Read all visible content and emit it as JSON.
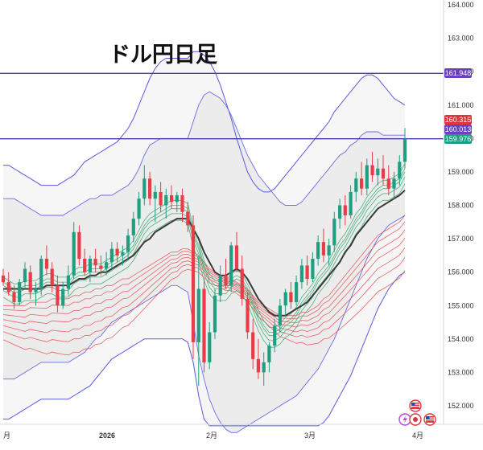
{
  "chart_data": {
    "type": "candlestick",
    "title": "ドル円日足",
    "x_ticks": [
      "月",
      "2026",
      "2月",
      "3月",
      "4月"
    ],
    "y_ticks": [
      "152.000",
      "153.000",
      "154.000",
      "155.000",
      "156.000",
      "157.000",
      "158.000",
      "159.000",
      "160.000",
      "161.000",
      "162.000",
      "163.000",
      "164.000"
    ],
    "y_range": [
      151.4,
      164.0
    ],
    "grid": false,
    "horizontal_lines": [
      161.948,
      159.99
    ],
    "price_badges": [
      {
        "label": "161.948",
        "value": 161.948,
        "color": "#6a3fc0"
      },
      {
        "label": "160.315",
        "value": 160.315,
        "color": "#e0343c"
      },
      {
        "label": "160.013",
        "value": 160.013,
        "color": "#6a3fc0"
      },
      {
        "label": "159.976",
        "value": 159.976,
        "color": "#1f9e82"
      }
    ],
    "candles": [
      [
        155.9,
        156.1,
        155.6,
        155.7
      ],
      [
        155.7,
        156.0,
        155.3,
        155.4
      ],
      [
        155.4,
        155.6,
        154.9,
        155.1
      ],
      [
        155.1,
        155.8,
        155.0,
        155.7
      ],
      [
        155.7,
        156.3,
        155.5,
        156.1
      ],
      [
        156.0,
        156.2,
        155.2,
        155.4
      ],
      [
        155.4,
        155.7,
        155.0,
        155.5
      ],
      [
        155.5,
        156.5,
        155.3,
        156.4
      ],
      [
        156.4,
        156.8,
        155.9,
        156.1
      ],
      [
        156.1,
        156.3,
        155.4,
        155.6
      ],
      [
        155.6,
        155.9,
        154.8,
        155.0
      ],
      [
        155.0,
        155.7,
        154.9,
        155.5
      ],
      [
        155.5,
        156.2,
        155.3,
        155.9
      ],
      [
        155.9,
        157.5,
        155.8,
        157.2
      ],
      [
        157.2,
        157.4,
        156.2,
        156.4
      ],
      [
        156.4,
        156.7,
        155.9,
        156.0
      ],
      [
        156.0,
        156.5,
        155.7,
        156.4
      ],
      [
        156.4,
        156.7,
        156.0,
        156.2
      ],
      [
        156.2,
        156.5,
        155.9,
        156.1
      ],
      [
        156.1,
        156.6,
        155.9,
        156.3
      ],
      [
        156.3,
        156.9,
        156.1,
        156.7
      ],
      [
        156.7,
        156.9,
        156.3,
        156.5
      ],
      [
        156.5,
        156.8,
        156.2,
        156.6
      ],
      [
        156.6,
        157.3,
        156.4,
        157.1
      ],
      [
        157.1,
        157.8,
        156.9,
        157.6
      ],
      [
        157.6,
        158.4,
        157.4,
        158.2
      ],
      [
        158.2,
        159.2,
        158.0,
        158.8
      ],
      [
        158.8,
        159.0,
        158.0,
        158.2
      ],
      [
        158.2,
        158.6,
        157.5,
        158.4
      ],
      [
        158.4,
        158.7,
        157.8,
        158.0
      ],
      [
        158.0,
        158.5,
        157.6,
        158.3
      ],
      [
        158.3,
        158.6,
        157.9,
        158.1
      ],
      [
        158.1,
        158.4,
        157.8,
        158.3
      ],
      [
        158.3,
        158.5,
        157.5,
        157.8
      ],
      [
        157.8,
        158.1,
        157.2,
        157.4
      ],
      [
        157.4,
        157.7,
        153.4,
        153.9
      ],
      [
        153.9,
        156.5,
        152.6,
        155.5
      ],
      [
        155.5,
        155.8,
        153.0,
        153.3
      ],
      [
        153.3,
        154.5,
        153.1,
        154.2
      ],
      [
        154.2,
        155.5,
        154.0,
        155.3
      ],
      [
        155.3,
        156.2,
        155.1,
        155.9
      ],
      [
        155.9,
        156.4,
        155.5,
        155.6
      ],
      [
        155.6,
        156.9,
        155.4,
        156.8
      ],
      [
        156.8,
        157.2,
        156.0,
        156.1
      ],
      [
        156.1,
        156.5,
        155.0,
        155.2
      ],
      [
        155.2,
        155.4,
        154.0,
        154.2
      ],
      [
        154.2,
        154.6,
        153.1,
        153.4
      ],
      [
        153.4,
        154.0,
        152.8,
        153.0
      ],
      [
        153.0,
        153.6,
        152.6,
        153.3
      ],
      [
        153.3,
        153.9,
        153.0,
        153.8
      ],
      [
        153.8,
        154.6,
        153.6,
        154.4
      ],
      [
        154.4,
        155.2,
        154.2,
        155.0
      ],
      [
        155.0,
        155.5,
        154.7,
        155.4
      ],
      [
        155.4,
        155.7,
        154.9,
        155.1
      ],
      [
        155.1,
        155.9,
        155.0,
        155.7
      ],
      [
        155.7,
        156.4,
        155.5,
        156.2
      ],
      [
        156.2,
        156.5,
        155.6,
        155.8
      ],
      [
        155.8,
        156.6,
        155.7,
        156.4
      ],
      [
        156.4,
        157.1,
        156.2,
        156.9
      ],
      [
        156.9,
        157.3,
        156.3,
        156.5
      ],
      [
        156.5,
        157.0,
        156.2,
        156.8
      ],
      [
        156.8,
        157.8,
        156.6,
        157.6
      ],
      [
        157.6,
        158.2,
        157.3,
        158.0
      ],
      [
        158.0,
        158.3,
        157.4,
        157.7
      ],
      [
        157.7,
        158.6,
        157.6,
        158.4
      ],
      [
        158.4,
        159.0,
        158.1,
        158.8
      ],
      [
        158.8,
        159.3,
        158.3,
        158.5
      ],
      [
        158.5,
        159.4,
        158.3,
        159.2
      ],
      [
        159.2,
        159.6,
        158.7,
        158.9
      ],
      [
        158.9,
        159.4,
        158.6,
        159.1
      ],
      [
        159.1,
        159.5,
        158.6,
        158.8
      ],
      [
        158.8,
        159.2,
        158.3,
        158.5
      ],
      [
        158.5,
        159.0,
        158.2,
        158.8
      ],
      [
        158.8,
        159.5,
        158.6,
        159.3
      ],
      [
        159.3,
        160.315,
        159.1,
        159.976
      ]
    ],
    "overlays": {
      "ema_short_green": [
        155.7,
        155.6,
        155.5,
        155.5,
        155.6,
        155.6,
        155.6,
        155.7,
        155.8,
        155.8,
        155.7,
        155.7,
        155.7,
        155.9,
        156.0,
        156.0,
        156.1,
        156.1,
        156.1,
        156.2,
        156.3,
        156.4,
        156.5,
        156.6,
        156.8,
        157.1,
        157.4,
        157.6,
        157.7,
        157.8,
        157.9,
        158.0,
        158.0,
        158.0,
        157.9,
        157.2,
        156.8,
        156.2,
        155.8,
        155.6,
        155.6,
        155.6,
        155.8,
        155.9,
        155.8,
        155.5,
        155.1,
        154.7,
        154.4,
        154.2,
        154.2,
        154.3,
        154.5,
        154.6,
        154.8,
        155.1,
        155.3,
        155.5,
        155.8,
        156.0,
        156.2,
        156.5,
        156.8,
        157.0,
        157.3,
        157.6,
        157.8,
        158.1,
        158.3,
        158.5,
        158.6,
        158.6,
        158.7,
        158.8,
        159.1
      ],
      "ma_mid_dark": [
        155.5,
        155.5,
        155.5,
        155.5,
        155.5,
        155.5,
        155.5,
        155.5,
        155.6,
        155.6,
        155.6,
        155.6,
        155.6,
        155.7,
        155.8,
        155.8,
        155.9,
        155.9,
        156.0,
        156.0,
        156.1,
        156.2,
        156.3,
        156.4,
        156.5,
        156.7,
        156.9,
        157.0,
        157.2,
        157.3,
        157.4,
        157.5,
        157.6,
        157.6,
        157.6,
        157.3,
        157.0,
        156.6,
        156.3,
        156.0,
        155.9,
        155.9,
        156.0,
        156.1,
        156.0,
        155.8,
        155.5,
        155.2,
        155.0,
        154.8,
        154.7,
        154.7,
        154.7,
        154.8,
        154.9,
        155.0,
        155.1,
        155.3,
        155.5,
        155.7,
        155.9,
        156.1,
        156.3,
        156.6,
        156.8,
        157.1,
        157.3,
        157.5,
        157.7,
        157.9,
        158.0,
        158.1,
        158.2,
        158.3,
        158.45
      ],
      "ma_long_red": [
        155.0,
        155.0,
        155.0,
        155.0,
        155.0,
        155.1,
        155.1,
        155.1,
        155.1,
        155.2,
        155.2,
        155.2,
        155.2,
        155.3,
        155.3,
        155.4,
        155.4,
        155.5,
        155.5,
        155.6,
        155.6,
        155.7,
        155.8,
        155.8,
        155.9,
        156.0,
        156.1,
        156.2,
        156.3,
        156.4,
        156.5,
        156.6,
        156.6,
        156.7,
        156.7,
        156.6,
        156.5,
        156.3,
        156.1,
        156.0,
        155.9,
        155.8,
        155.8,
        155.7,
        155.6,
        155.5,
        155.3,
        155.1,
        155.0,
        154.9,
        154.8,
        154.7,
        154.7,
        154.7,
        154.7,
        154.8,
        154.8,
        154.9,
        155.0,
        155.2,
        155.3,
        155.5,
        155.7,
        155.9,
        156.1,
        156.3,
        156.5,
        156.7,
        156.9,
        157.1,
        157.2,
        157.3,
        157.4,
        157.5,
        157.7
      ],
      "bb_upper": [
        158.2,
        158.2,
        158.2,
        158.1,
        158.0,
        157.9,
        157.8,
        157.7,
        157.7,
        157.7,
        157.7,
        157.7,
        157.8,
        157.9,
        158.0,
        158.1,
        158.2,
        158.2,
        158.3,
        158.3,
        158.3,
        158.4,
        158.5,
        158.6,
        158.8,
        159.1,
        159.5,
        159.8,
        159.9,
        160.0,
        160.0,
        160.0,
        160.0,
        160.0,
        160.0,
        160.5,
        161.0,
        161.3,
        161.4,
        161.3,
        161.2,
        161.0,
        160.7,
        160.3,
        159.9,
        159.5,
        159.2,
        158.9,
        158.7,
        158.5,
        158.3,
        158.1,
        158.0,
        158.0,
        158.0,
        158.1,
        158.3,
        158.5,
        158.7,
        158.9,
        159.1,
        159.3,
        159.5,
        159.6,
        159.8,
        159.9,
        160.1,
        160.2,
        160.2,
        160.2,
        160.1,
        160.1,
        160.1,
        160.1,
        160.1
      ],
      "bb_lower": [
        152.8,
        152.8,
        152.8,
        152.9,
        153.0,
        153.1,
        153.2,
        153.3,
        153.3,
        153.3,
        153.3,
        153.3,
        153.3,
        153.4,
        153.5,
        153.6,
        153.8,
        154.0,
        154.1,
        154.3,
        154.5,
        154.6,
        154.7,
        154.8,
        154.9,
        155.0,
        155.1,
        155.2,
        155.3,
        155.4,
        155.5,
        155.6,
        155.6,
        155.5,
        155.4,
        154.5,
        153.5,
        152.8,
        152.2,
        151.8,
        151.5,
        151.3,
        151.2,
        151.2,
        151.3,
        151.4,
        151.5,
        151.6,
        151.7,
        151.8,
        151.9,
        152.0,
        152.1,
        152.2,
        152.3,
        152.5,
        152.7,
        152.9,
        153.1,
        153.4,
        153.7,
        154.0,
        154.4,
        154.8,
        155.2,
        155.6,
        156.0,
        156.4,
        156.7,
        157.0,
        157.2,
        157.4,
        157.5,
        157.6,
        157.7
      ],
      "bb_outer_upper": [
        159.2,
        159.2,
        159.1,
        159.0,
        158.9,
        158.8,
        158.7,
        158.6,
        158.6,
        158.6,
        158.6,
        158.7,
        158.8,
        158.9,
        159.1,
        159.3,
        159.4,
        159.5,
        159.6,
        159.7,
        159.8,
        159.9,
        160.1,
        160.3,
        160.6,
        161.0,
        161.4,
        161.8,
        162.1,
        162.3,
        162.4,
        162.4,
        162.4,
        162.4,
        162.4,
        162.6,
        162.6,
        162.5,
        162.3,
        162.0,
        161.6,
        161.1,
        160.6,
        160.0,
        159.5,
        159.0,
        158.7,
        158.5,
        158.4,
        158.4,
        158.5,
        158.7,
        158.9,
        159.1,
        159.3,
        159.5,
        159.7,
        159.9,
        160.1,
        160.3,
        160.5,
        160.8,
        161.0,
        161.2,
        161.4,
        161.6,
        161.8,
        161.9,
        161.9,
        161.8,
        161.6,
        161.4,
        161.2,
        161.1,
        161.0
      ],
      "bb_outer_lower": [
        151.6,
        151.6,
        151.7,
        151.8,
        151.9,
        152.0,
        152.1,
        152.2,
        152.2,
        152.2,
        152.2,
        152.2,
        152.2,
        152.3,
        152.4,
        152.5,
        152.6,
        152.8,
        153.0,
        153.2,
        153.4,
        153.5,
        153.6,
        153.7,
        153.8,
        153.9,
        154.0,
        154.0,
        154.0,
        154.0,
        154.0,
        154.0,
        154.0,
        154.0,
        153.9,
        153.3,
        152.3,
        151.6,
        151.4,
        151.4,
        151.4,
        151.4,
        151.4,
        151.4,
        151.4,
        151.4,
        151.4,
        151.4,
        151.4,
        151.4,
        151.4,
        151.4,
        151.4,
        151.4,
        151.4,
        151.4,
        151.4,
        151.4,
        151.4,
        151.5,
        151.7,
        152.0,
        152.3,
        152.6,
        152.9,
        153.3,
        153.7,
        154.1,
        154.5,
        154.9,
        155.2,
        155.5,
        155.7,
        155.9,
        156.0
      ]
    }
  }
}
